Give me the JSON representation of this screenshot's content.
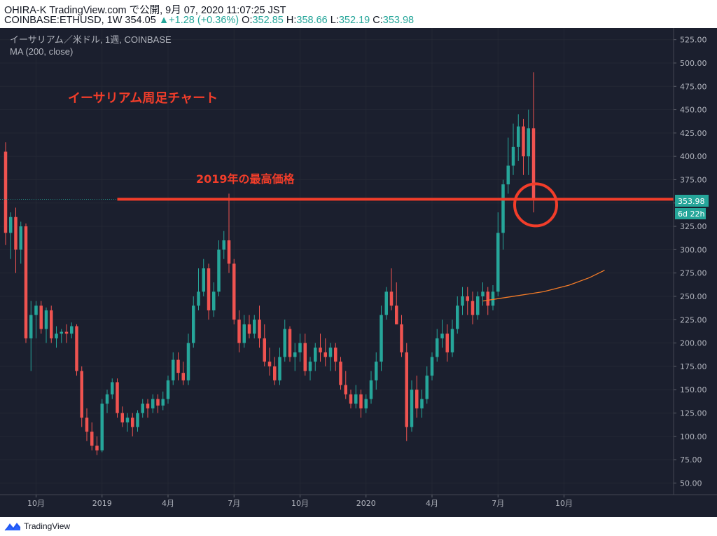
{
  "header": {
    "publisher": "OHIRA-K TradingView.com で公開, 9月 07, 2020 11:07:25 JST",
    "symbol": "COINBASE:ETHUSD, 1W",
    "last": "354.05",
    "change": "+1.28 (+0.36%)",
    "o_label": "O:",
    "o": "352.85",
    "h_label": "H:",
    "h": "358.66",
    "l_label": "L:",
    "l": "352.19",
    "c_label": "C:",
    "c": "353.98"
  },
  "legend": {
    "series": "イーサリアム／米ドル, 1週, COINBASE",
    "indicator": "MA (200, close)"
  },
  "annotations": {
    "title": "イーサリアム周足チャート",
    "level_label": "2019年の最高価格"
  },
  "price_tag": {
    "price": "353.98",
    "countdown": "6d 22h"
  },
  "footer": {
    "brand": "TradingView"
  },
  "colors": {
    "up": "#26a69a",
    "down": "#ef5350",
    "annotation": "#f23d2a",
    "ma": "#f57c28",
    "grid": "#2a2e39",
    "axis_text": "#b2b5be"
  },
  "chart_data": {
    "type": "candlestick",
    "symbol": "COINBASE:ETHUSD",
    "interval": "1W",
    "ylim": [
      37.5,
      537.5
    ],
    "y_ticks": [
      50,
      75,
      100,
      125,
      150,
      175,
      200,
      225,
      250,
      275,
      300,
      325,
      350,
      375,
      400,
      425,
      450,
      475,
      500,
      525
    ],
    "y_tick_labels": [
      "50.00",
      "75.00",
      "100.00",
      "125.00",
      "150.00",
      "175.00",
      "200.00",
      "225.00",
      "250.00",
      "275.00",
      "300.00",
      "325.00",
      "350.00",
      "375.00",
      "400.00",
      "425.00",
      "450.00",
      "475.00",
      "500.00",
      "525.00"
    ],
    "x_ticks": [
      {
        "label": "10月",
        "index": 6
      },
      {
        "label": "2019",
        "index": 19
      },
      {
        "label": "4月",
        "index": 32
      },
      {
        "label": "7月",
        "index": 45
      },
      {
        "label": "10月",
        "index": 58
      },
      {
        "label": "2020",
        "index": 71
      },
      {
        "label": "4月",
        "index": 84
      },
      {
        "label": "7月",
        "index": 97
      },
      {
        "label": "10月",
        "index": 110
      }
    ],
    "bars_visible": 121,
    "candles": [
      [
        405,
        415,
        305,
        318
      ],
      [
        318,
        340,
        290,
        335
      ],
      [
        335,
        345,
        275,
        300
      ],
      [
        300,
        330,
        285,
        325
      ],
      [
        325,
        328,
        200,
        205
      ],
      [
        205,
        245,
        170,
        230
      ],
      [
        230,
        245,
        205,
        240
      ],
      [
        240,
        245,
        210,
        215
      ],
      [
        215,
        238,
        200,
        235
      ],
      [
        235,
        240,
        200,
        205
      ],
      [
        205,
        218,
        195,
        210
      ],
      [
        210,
        215,
        200,
        212
      ],
      [
        212,
        220,
        200,
        210
      ],
      [
        210,
        222,
        205,
        218
      ],
      [
        218,
        220,
        165,
        170
      ],
      [
        170,
        175,
        110,
        120
      ],
      [
        120,
        130,
        95,
        105
      ],
      [
        105,
        115,
        85,
        90
      ],
      [
        90,
        100,
        80,
        85
      ],
      [
        85,
        140,
        83,
        135
      ],
      [
        135,
        150,
        125,
        145
      ],
      [
        145,
        162,
        140,
        158
      ],
      [
        158,
        162,
        120,
        125
      ],
      [
        125,
        132,
        110,
        115
      ],
      [
        115,
        125,
        105,
        120
      ],
      [
        120,
        125,
        100,
        110
      ],
      [
        110,
        128,
        105,
        125
      ],
      [
        125,
        140,
        120,
        135
      ],
      [
        135,
        140,
        120,
        130
      ],
      [
        130,
        145,
        125,
        140
      ],
      [
        140,
        145,
        125,
        133
      ],
      [
        133,
        148,
        128,
        140
      ],
      [
        140,
        165,
        135,
        160
      ],
      [
        160,
        190,
        155,
        182
      ],
      [
        182,
        190,
        160,
        168
      ],
      [
        168,
        180,
        155,
        160
      ],
      [
        160,
        210,
        155,
        200
      ],
      [
        200,
        250,
        195,
        240
      ],
      [
        240,
        280,
        235,
        255
      ],
      [
        255,
        290,
        250,
        280
      ],
      [
        280,
        285,
        225,
        235
      ],
      [
        235,
        265,
        228,
        255
      ],
      [
        255,
        310,
        250,
        300
      ],
      [
        300,
        320,
        290,
        310
      ],
      [
        310,
        360,
        275,
        285
      ],
      [
        285,
        290,
        220,
        225
      ],
      [
        225,
        235,
        190,
        200
      ],
      [
        200,
        230,
        195,
        220
      ],
      [
        220,
        230,
        205,
        210
      ],
      [
        210,
        230,
        205,
        225
      ],
      [
        225,
        240,
        195,
        205
      ],
      [
        205,
        220,
        175,
        180
      ],
      [
        180,
        195,
        165,
        175
      ],
      [
        175,
        185,
        155,
        160
      ],
      [
        160,
        195,
        155,
        185
      ],
      [
        185,
        225,
        180,
        215
      ],
      [
        215,
        218,
        180,
        185
      ],
      [
        185,
        200,
        170,
        190
      ],
      [
        190,
        210,
        180,
        200
      ],
      [
        200,
        210,
        165,
        170
      ],
      [
        170,
        185,
        160,
        180
      ],
      [
        180,
        200,
        170,
        195
      ],
      [
        195,
        210,
        180,
        190
      ],
      [
        190,
        205,
        175,
        185
      ],
      [
        185,
        200,
        170,
        195
      ],
      [
        195,
        200,
        170,
        180
      ],
      [
        180,
        185,
        150,
        155
      ],
      [
        155,
        170,
        140,
        145
      ],
      [
        145,
        150,
        130,
        135
      ],
      [
        135,
        155,
        130,
        145
      ],
      [
        145,
        150,
        120,
        130
      ],
      [
        130,
        145,
        125,
        140
      ],
      [
        140,
        170,
        135,
        160
      ],
      [
        160,
        190,
        150,
        180
      ],
      [
        180,
        240,
        170,
        230
      ],
      [
        230,
        260,
        225,
        255
      ],
      [
        255,
        280,
        235,
        240
      ],
      [
        240,
        265,
        220,
        220
      ],
      [
        220,
        230,
        185,
        190
      ],
      [
        190,
        200,
        95,
        110
      ],
      [
        110,
        160,
        105,
        150
      ],
      [
        150,
        165,
        120,
        130
      ],
      [
        130,
        150,
        120,
        140
      ],
      [
        140,
        175,
        135,
        165
      ],
      [
        165,
        190,
        160,
        185
      ],
      [
        185,
        215,
        180,
        205
      ],
      [
        205,
        225,
        195,
        210
      ],
      [
        210,
        220,
        180,
        190
      ],
      [
        190,
        225,
        185,
        215
      ],
      [
        215,
        250,
        210,
        240
      ],
      [
        240,
        260,
        230,
        250
      ],
      [
        250,
        260,
        230,
        245
      ],
      [
        245,
        255,
        220,
        230
      ],
      [
        230,
        255,
        225,
        250
      ],
      [
        250,
        265,
        240,
        255
      ],
      [
        255,
        260,
        230,
        240
      ],
      [
        240,
        262,
        235,
        255
      ],
      [
        255,
        340,
        250,
        318
      ],
      [
        318,
        375,
        300,
        370
      ],
      [
        370,
        420,
        360,
        390
      ],
      [
        390,
        435,
        380,
        410
      ],
      [
        410,
        445,
        395,
        432
      ],
      [
        432,
        440,
        380,
        400
      ],
      [
        400,
        450,
        380,
        430
      ],
      [
        430,
        490,
        340,
        354
      ]
    ],
    "ma": {
      "name": "MA (200, close)",
      "start_index": 95,
      "values": [
        {
          "i": 95,
          "v": 245
        },
        {
          "i": 101,
          "v": 250
        },
        {
          "i": 107,
          "v": 255
        },
        {
          "i": 112,
          "v": 262
        },
        {
          "i": 116,
          "v": 270
        },
        {
          "i": 119,
          "v": 278
        }
      ]
    },
    "last_price": 353.98,
    "horizontal_level": 354,
    "annotation_title": "イーサリアム周足チャート",
    "annotation_level": "2019年の最高価格"
  }
}
